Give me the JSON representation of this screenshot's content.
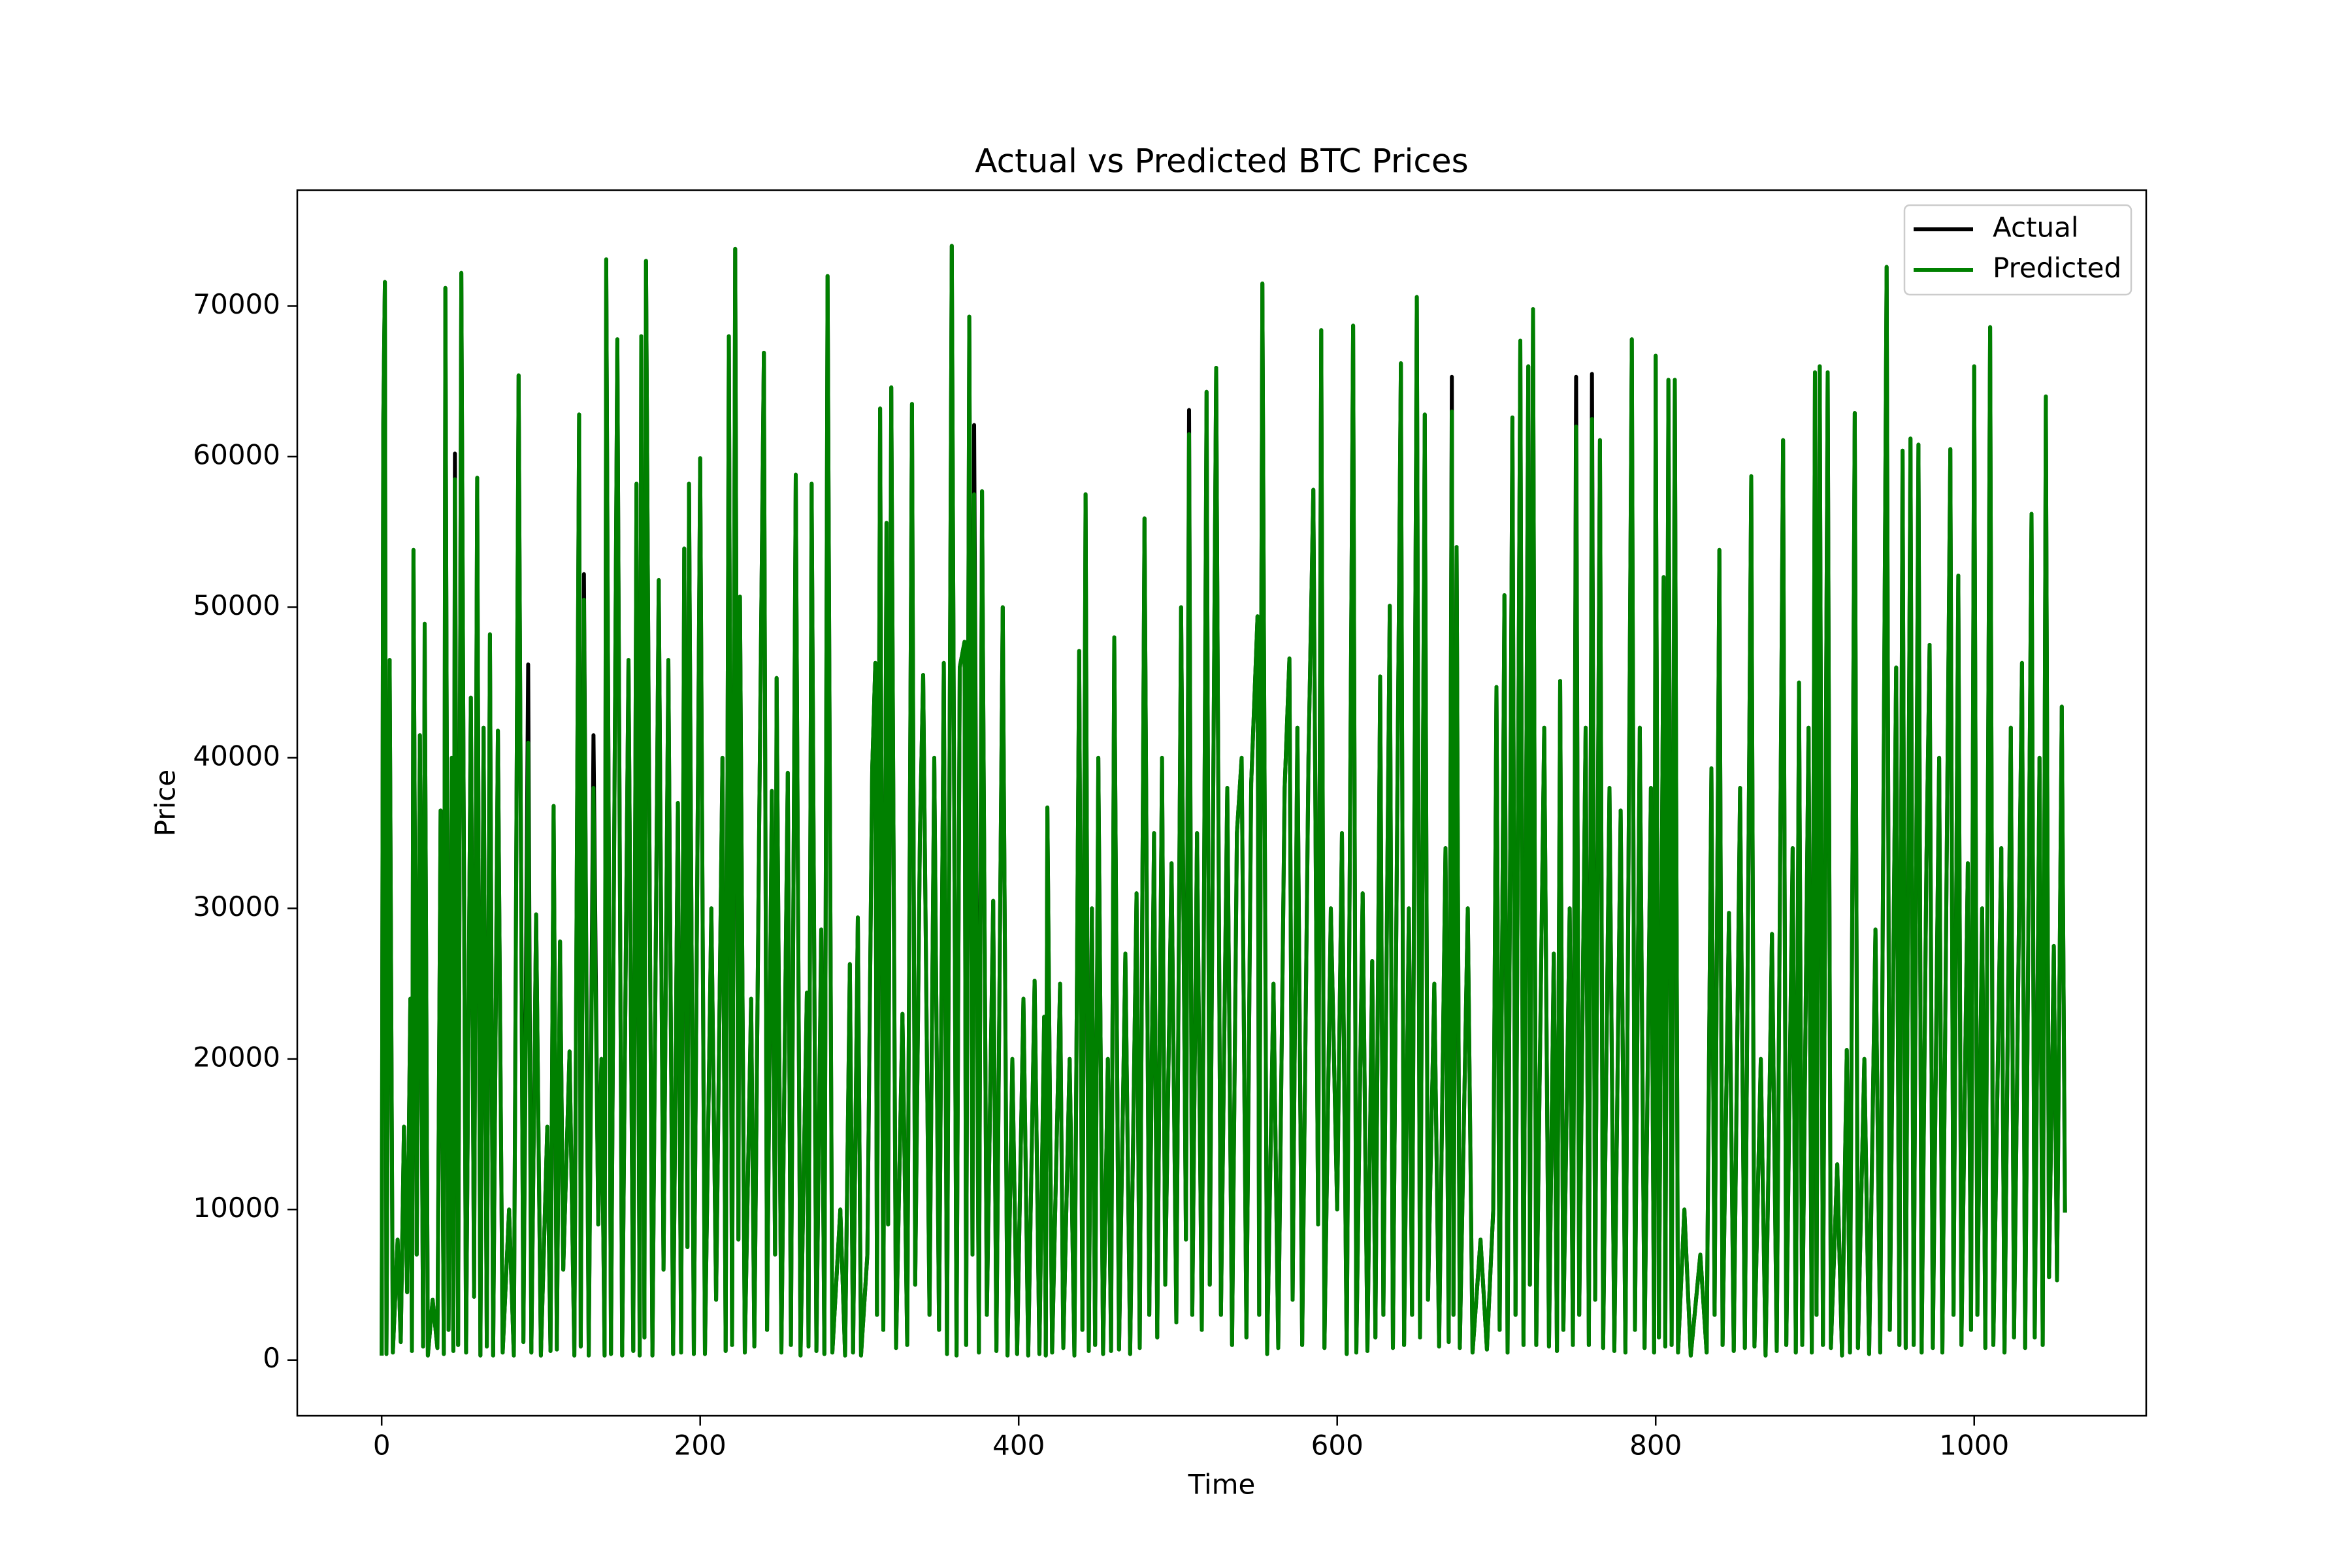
{
  "chart_data": {
    "type": "line",
    "title": "Actual vs Predicted BTC Prices",
    "x_label": "Time",
    "y_label": "Price",
    "x": [
      0,
      1,
      2,
      3,
      5,
      7,
      10,
      12,
      14,
      16,
      18,
      19,
      20,
      22,
      24,
      26,
      27,
      29,
      32,
      35,
      37,
      39,
      40,
      42,
      44,
      45,
      46,
      48,
      50,
      53,
      56,
      58,
      60,
      62,
      64,
      66,
      68,
      70,
      73,
      76,
      80,
      83,
      86,
      89,
      92,
      94,
      97,
      100,
      104,
      106,
      108,
      110,
      112,
      114,
      118,
      121,
      124,
      125,
      127,
      130,
      133,
      136,
      138,
      140,
      141,
      144,
      148,
      151,
      155,
      158,
      160,
      162,
      163,
      165,
      166,
      170,
      174,
      177,
      180,
      183,
      186,
      188,
      190,
      192,
      193,
      196,
      199,
      200,
      203,
      207,
      210,
      214,
      216,
      218,
      220,
      222,
      224,
      225,
      228,
      232,
      234,
      237,
      240,
      242,
      245,
      247,
      248,
      251,
      255,
      257,
      260,
      263,
      267,
      268,
      270,
      273,
      276,
      278,
      280,
      283,
      288,
      291,
      294,
      296,
      299,
      301,
      305,
      308,
      310,
      311,
      313,
      315,
      317,
      318,
      320,
      323,
      327,
      330,
      333,
      335,
      338,
      340,
      344,
      347,
      350,
      353,
      355,
      358,
      361,
      363,
      366,
      367,
      369,
      371,
      372,
      375,
      377,
      380,
      384,
      386,
      390,
      393,
      396,
      399,
      403,
      406,
      410,
      413,
      416,
      417,
      418,
      421,
      426,
      428,
      432,
      435,
      438,
      440,
      442,
      444,
      446,
      448,
      450,
      453,
      456,
      458,
      460,
      463,
      467,
      470,
      474,
      476,
      479,
      482,
      485,
      487,
      490,
      492,
      496,
      499,
      502,
      505,
      507,
      509,
      512,
      515,
      518,
      520,
      524,
      527,
      531,
      534,
      537,
      540,
      543,
      546,
      550,
      551,
      553,
      556,
      560,
      563,
      567,
      570,
      572,
      575,
      578,
      582,
      585,
      588,
      590,
      592,
      596,
      600,
      603,
      606,
      610,
      612,
      616,
      619,
      622,
      624,
      627,
      629,
      633,
      635,
      640,
      642,
      645,
      647,
      650,
      652,
      655,
      657,
      661,
      664,
      668,
      670,
      672,
      673,
      675,
      677,
      682,
      685,
      690,
      694,
      698,
      700,
      702,
      705,
      707,
      710,
      712,
      715,
      717,
      720,
      721,
      723,
      725,
      730,
      733,
      736,
      738,
      740,
      742,
      746,
      748,
      750,
      752,
      756,
      758,
      760,
      762,
      765,
      767,
      771,
      774,
      778,
      781,
      785,
      787,
      790,
      793,
      797,
      799,
      800,
      802,
      805,
      806,
      808,
      810,
      812,
      814,
      818,
      822,
      828,
      832,
      835,
      837,
      840,
      842,
      846,
      849,
      853,
      856,
      860,
      862,
      866,
      869,
      873,
      876,
      880,
      882,
      886,
      888,
      890,
      892,
      896,
      898,
      900,
      901,
      903,
      905,
      908,
      910,
      914,
      917,
      920,
      922,
      925,
      927,
      931,
      934,
      938,
      941,
      945,
      947,
      951,
      953,
      955,
      957,
      960,
      962,
      965,
      967,
      970,
      972,
      974,
      978,
      980,
      985,
      987,
      990,
      992,
      996,
      998,
      1000,
      1002,
      1005,
      1007,
      1010,
      1012,
      1017,
      1019,
      1023,
      1025,
      1030,
      1032,
      1036,
      1038,
      1041,
      1043,
      1045,
      1047,
      1050,
      1052,
      1055,
      1057
    ],
    "series": [
      {
        "name": "Actual",
        "color": "#000000",
        "values": [
          300,
          62000,
          71600,
          400,
          46500,
          500,
          8000,
          1200,
          15500,
          4500,
          24000,
          600,
          53800,
          7000,
          41500,
          900,
          48900,
          300,
          4000,
          800,
          36500,
          400,
          71200,
          2000,
          40000,
          600,
          60200,
          1000,
          72200,
          500,
          44000,
          4200,
          58600,
          300,
          42000,
          900,
          48200,
          300,
          41800,
          500,
          10000,
          300,
          65400,
          1200,
          46200,
          500,
          29600,
          300,
          15500,
          600,
          36800,
          700,
          27800,
          6000,
          20500,
          300,
          62800,
          900,
          52200,
          300,
          41500,
          9000,
          20000,
          300,
          73100,
          400,
          67800,
          300,
          46500,
          600,
          58200,
          300,
          68000,
          1500,
          73000,
          300,
          51800,
          6000,
          46500,
          400,
          37000,
          500,
          53900,
          7500,
          58200,
          400,
          44500,
          59900,
          400,
          30000,
          4000,
          40000,
          600,
          68000,
          1000,
          73800,
          8000,
          50700,
          500,
          24000,
          900,
          35000,
          66900,
          2000,
          37800,
          7000,
          45300,
          500,
          39000,
          1000,
          58800,
          300,
          24400,
          900,
          58200,
          600,
          28600,
          400,
          72000,
          500,
          10000,
          300,
          26300,
          500,
          29400,
          300,
          7000,
          39200,
          46300,
          3000,
          63200,
          2000,
          55600,
          9000,
          64600,
          800,
          23000,
          1000,
          63500,
          5000,
          35000,
          45500,
          3000,
          40000,
          2000,
          46300,
          400,
          74000,
          300,
          46000,
          47700,
          1000,
          69300,
          7000,
          62100,
          500,
          57700,
          3000,
          30500,
          600,
          50000,
          300,
          20000,
          400,
          24000,
          300,
          25200,
          400,
          22800,
          300,
          36700,
          500,
          25000,
          800,
          20000,
          300,
          47100,
          2000,
          57500,
          600,
          30000,
          1000,
          40000,
          400,
          20000,
          600,
          48000,
          700,
          27000,
          400,
          31000,
          800,
          55900,
          3000,
          35000,
          1500,
          40000,
          5000,
          33000,
          2500,
          50000,
          8000,
          63100,
          3000,
          35000,
          2000,
          64300,
          5000,
          65900,
          3000,
          38000,
          1000,
          35000,
          40000,
          1500,
          38300,
          49400,
          3000,
          71500,
          400,
          25000,
          800,
          38000,
          46600,
          4000,
          42000,
          1000,
          40000,
          57800,
          9000,
          68400,
          800,
          30000,
          10000,
          35000,
          400,
          68700,
          500,
          31000,
          600,
          26500,
          1500,
          45400,
          3000,
          50100,
          800,
          66200,
          1000,
          30000,
          3000,
          70600,
          1500,
          62800,
          4000,
          25000,
          900,
          34000,
          1200,
          65300,
          3000,
          54000,
          800,
          30000,
          500,
          8000,
          700,
          10000,
          44700,
          2000,
          50800,
          500,
          62600,
          3000,
          67700,
          1000,
          66000,
          5000,
          69800,
          1000,
          42000,
          900,
          27000,
          600,
          45100,
          2000,
          30000,
          1000,
          65300,
          3000,
          42000,
          1000,
          65500,
          4000,
          61100,
          800,
          38000,
          600,
          36500,
          500,
          67800,
          2000,
          42000,
          800,
          38000,
          500,
          66700,
          1500,
          52000,
          900,
          65100,
          1000,
          65100,
          500,
          10000,
          300,
          7000,
          500,
          39300,
          3000,
          53800,
          1000,
          29700,
          600,
          38000,
          800,
          58700,
          900,
          20000,
          300,
          28300,
          600,
          61100,
          1000,
          34000,
          500,
          45000,
          1000,
          42000,
          500,
          65600,
          3000,
          66000,
          1000,
          65600,
          800,
          13000,
          300,
          20600,
          500,
          62900,
          800,
          20000,
          400,
          28600,
          500,
          72600,
          2000,
          46000,
          1000,
          60400,
          800,
          61200,
          1000,
          60800,
          500,
          33000,
          47500,
          800,
          40000,
          500,
          60500,
          3000,
          52100,
          1000,
          33000,
          2000,
          66000,
          3000,
          30000,
          800,
          68600,
          1000,
          34000,
          500,
          42000,
          1500,
          46300,
          800,
          56200,
          1500,
          40000,
          1000,
          64000,
          5500,
          27500,
          5300,
          43400,
          9800
        ]
      },
      {
        "name": "Predicted",
        "color": "#008000",
        "values": [
          300,
          62000,
          71600,
          400,
          46500,
          500,
          8000,
          1200,
          15500,
          4500,
          24000,
          600,
          53800,
          7000,
          41500,
          900,
          48900,
          300,
          4000,
          800,
          36500,
          400,
          71200,
          2000,
          40000,
          600,
          58500,
          1000,
          72200,
          500,
          44000,
          4200,
          58600,
          300,
          42000,
          900,
          48200,
          300,
          41800,
          500,
          10000,
          300,
          65400,
          1200,
          41000,
          500,
          29600,
          300,
          15500,
          600,
          36800,
          700,
          27800,
          6000,
          20500,
          300,
          62800,
          900,
          50500,
          300,
          38000,
          9000,
          20000,
          300,
          73100,
          400,
          67800,
          300,
          46500,
          600,
          58200,
          300,
          68000,
          1500,
          73000,
          300,
          51800,
          6000,
          46500,
          400,
          37000,
          500,
          53900,
          7500,
          58200,
          400,
          44500,
          59900,
          400,
          30000,
          4000,
          40000,
          600,
          68000,
          1000,
          73800,
          8000,
          50700,
          500,
          24000,
          900,
          35000,
          66900,
          2000,
          37800,
          7000,
          45300,
          500,
          39000,
          1000,
          58800,
          300,
          24400,
          900,
          58200,
          600,
          28600,
          400,
          72000,
          500,
          10000,
          300,
          26300,
          500,
          29400,
          300,
          7000,
          39200,
          46300,
          3000,
          63200,
          2000,
          55600,
          9000,
          64600,
          800,
          23000,
          1000,
          63500,
          5000,
          35000,
          45500,
          3000,
          40000,
          2000,
          46300,
          400,
          74000,
          300,
          46000,
          47700,
          1000,
          69300,
          7000,
          57500,
          500,
          57700,
          3000,
          30500,
          600,
          50000,
          300,
          20000,
          400,
          24000,
          300,
          25200,
          400,
          22800,
          300,
          36700,
          500,
          25000,
          800,
          20000,
          300,
          47100,
          2000,
          57500,
          600,
          30000,
          1000,
          40000,
          400,
          20000,
          600,
          48000,
          700,
          27000,
          400,
          31000,
          800,
          55900,
          3000,
          35000,
          1500,
          40000,
          5000,
          33000,
          2500,
          50000,
          8000,
          61500,
          3000,
          35000,
          2000,
          64300,
          5000,
          65900,
          3000,
          38000,
          1000,
          35000,
          40000,
          1500,
          38300,
          49400,
          3000,
          71500,
          400,
          25000,
          800,
          38000,
          46600,
          4000,
          42000,
          1000,
          40000,
          57800,
          9000,
          68400,
          800,
          30000,
          10000,
          35000,
          400,
          68700,
          500,
          31000,
          600,
          26500,
          1500,
          45400,
          3000,
          50100,
          800,
          66200,
          1000,
          30000,
          3000,
          70600,
          1500,
          62800,
          4000,
          25000,
          900,
          34000,
          1200,
          63000,
          3000,
          54000,
          800,
          30000,
          500,
          8000,
          700,
          10000,
          44700,
          2000,
          50800,
          500,
          62600,
          3000,
          67700,
          1000,
          66000,
          5000,
          69800,
          1000,
          42000,
          900,
          27000,
          600,
          45100,
          2000,
          30000,
          1000,
          62000,
          3000,
          42000,
          1000,
          62500,
          4000,
          61100,
          800,
          38000,
          600,
          36500,
          500,
          67800,
          2000,
          42000,
          800,
          38000,
          500,
          66700,
          1500,
          52000,
          900,
          65100,
          1000,
          65100,
          500,
          10000,
          300,
          7000,
          500,
          39300,
          3000,
          53800,
          1000,
          29700,
          600,
          38000,
          800,
          58700,
          900,
          20000,
          300,
          28300,
          600,
          61100,
          1000,
          34000,
          500,
          45000,
          1000,
          42000,
          500,
          65600,
          3000,
          66000,
          1000,
          65600,
          800,
          13000,
          300,
          20600,
          500,
          62900,
          800,
          20000,
          400,
          28600,
          500,
          72600,
          2000,
          46000,
          1000,
          60400,
          800,
          61200,
          1000,
          60800,
          500,
          33000,
          47500,
          800,
          40000,
          500,
          60500,
          3000,
          52100,
          1000,
          33000,
          2000,
          66000,
          3000,
          30000,
          800,
          68600,
          1000,
          34000,
          500,
          42000,
          1500,
          46300,
          800,
          56200,
          1500,
          40000,
          1000,
          64000,
          5500,
          27500,
          5300,
          43400,
          9800
        ]
      }
    ],
    "xlim": [
      -53,
      1108
    ],
    "ylim": [
      -3700,
      77700
    ],
    "xticks": [
      0,
      200,
      400,
      600,
      800,
      1000
    ],
    "yticks": [
      0,
      10000,
      20000,
      30000,
      40000,
      50000,
      60000,
      70000
    ],
    "legend": "upper right"
  }
}
